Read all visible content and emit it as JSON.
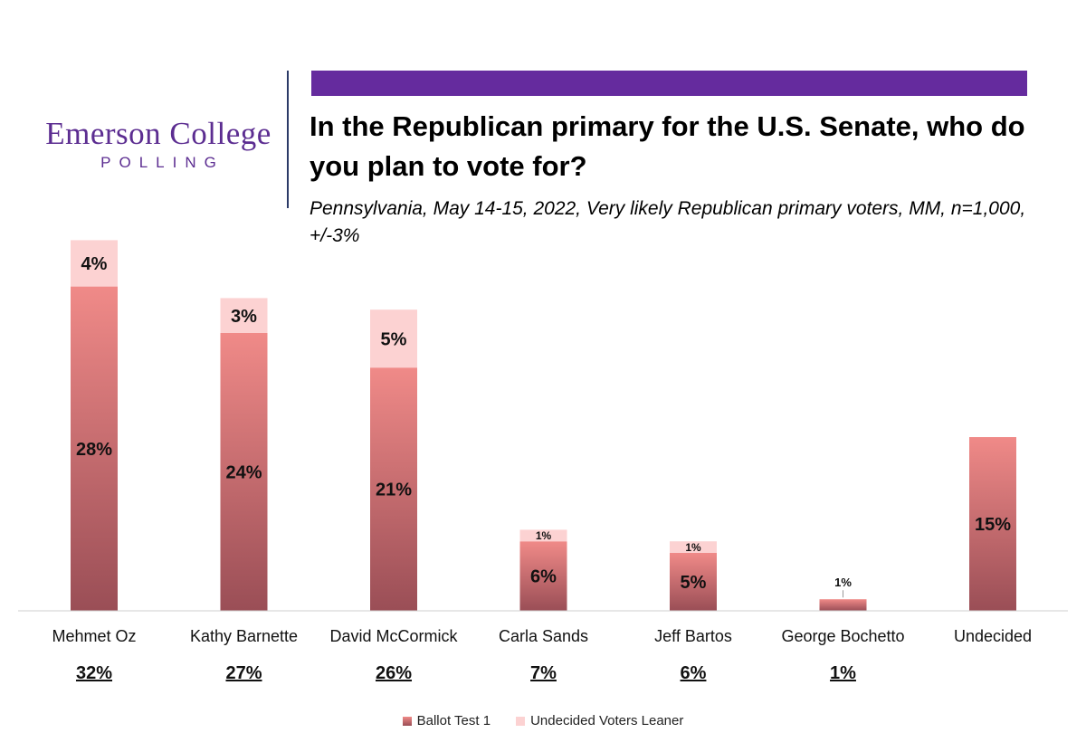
{
  "logo": {
    "name": "Emerson College",
    "sub": "POLLING"
  },
  "header": {
    "title": "In the Republican primary for the U.S. Senate, who do you plan to vote for?",
    "subtitle": "Pennsylvania, May 14-15, 2022, Very likely Republican primary voters, MM, n=1,000, +/-3%"
  },
  "colors": {
    "banner": "#652b9e",
    "ballot_top": "#f08a88",
    "ballot_bottom": "#9a4e56",
    "leaner": "#fcd2d2",
    "logo": "#5c2d91"
  },
  "chart_data": {
    "type": "bar",
    "stacked": true,
    "categories": [
      "Mehmet Oz",
      "Kathy Barnette",
      "David McCormick",
      "Carla Sands",
      "Jeff Bartos",
      "George Bochetto",
      "Undecided"
    ],
    "series": [
      {
        "name": "Ballot Test 1",
        "values": [
          28,
          24,
          21,
          6,
          5,
          1,
          15
        ],
        "labels": [
          "28%",
          "24%",
          "21%",
          "6%",
          "5%",
          "1%",
          "15%"
        ]
      },
      {
        "name": "Undecided Voters Leaner",
        "values": [
          4,
          3,
          5,
          1,
          1,
          0,
          0
        ],
        "labels": [
          "4%",
          "3%",
          "5%",
          "1%",
          "1%",
          "",
          ""
        ]
      }
    ],
    "totals": [
      "32%",
      "27%",
      "26%",
      "7%",
      "6%",
      "1%",
      ""
    ],
    "ylim": [
      0,
      32
    ],
    "legend": "bottom"
  }
}
